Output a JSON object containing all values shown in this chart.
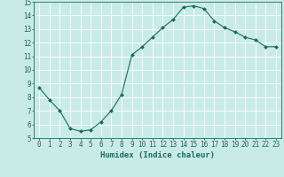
{
  "x": [
    0,
    1,
    2,
    3,
    4,
    5,
    6,
    7,
    8,
    9,
    10,
    11,
    12,
    13,
    14,
    15,
    16,
    17,
    18,
    19,
    20,
    21,
    22,
    23
  ],
  "y": [
    8.7,
    7.8,
    7.0,
    5.7,
    5.5,
    5.6,
    6.2,
    7.0,
    8.2,
    11.1,
    11.7,
    12.4,
    13.1,
    13.7,
    14.6,
    14.7,
    14.5,
    13.6,
    13.1,
    12.8,
    12.4,
    12.2,
    11.7,
    11.7
  ],
  "line_color": "#1a6b5a",
  "marker": "D",
  "marker_size": 2.0,
  "background_color": "#c8ebe8",
  "grid_color": "#b0d8d4",
  "xlabel": "Humidex (Indice chaleur)",
  "xlim": [
    -0.5,
    23.5
  ],
  "ylim": [
    5,
    15
  ],
  "xticks": [
    0,
    1,
    2,
    3,
    4,
    5,
    6,
    7,
    8,
    9,
    10,
    11,
    12,
    13,
    14,
    15,
    16,
    17,
    18,
    19,
    20,
    21,
    22,
    23
  ],
  "yticks": [
    5,
    6,
    7,
    8,
    9,
    10,
    11,
    12,
    13,
    14,
    15
  ],
  "xlabel_fontsize": 6.5,
  "tick_fontsize": 5.5
}
